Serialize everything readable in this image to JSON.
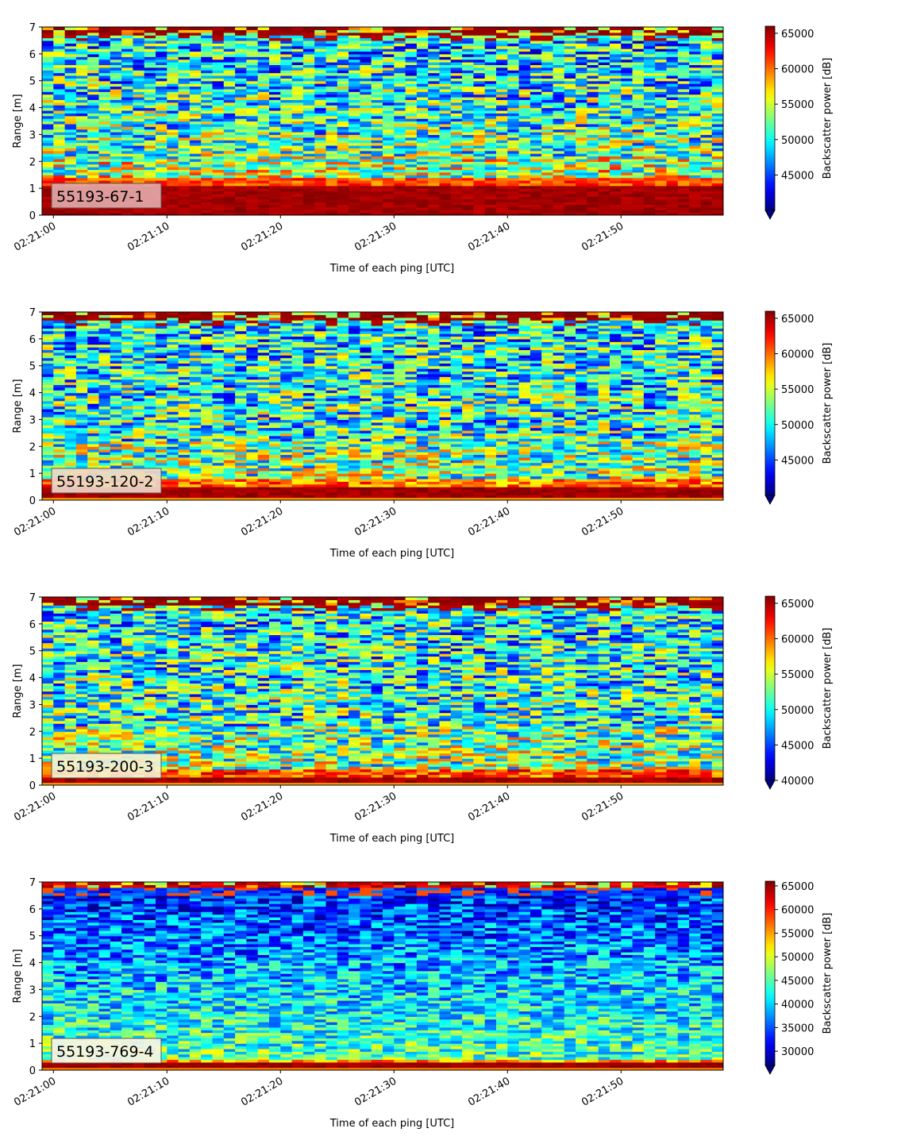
{
  "colors": {
    "colormap": "jet",
    "frame": "#000000",
    "label_box_bg": "#ffffff"
  },
  "chart_data": [
    {
      "type": "heatmap",
      "label": "55193-67-1",
      "label_box_color": "#e3a8a8",
      "xlabel": "Time of each ping [UTC]",
      "ylabel": "Range [m]",
      "xlim": [
        "02:20:59",
        "02:21:59"
      ],
      "ylim": [
        0,
        7
      ],
      "xticks": [
        "02:21:00",
        "02:21:10",
        "02:21:20",
        "02:21:30",
        "02:21:40",
        "02:21:50"
      ],
      "yticks": [
        0,
        1,
        2,
        3,
        4,
        5,
        6,
        7
      ],
      "colorbar": {
        "label": "Backscatter power [dB]",
        "vmin": 40000,
        "vmax": 66000,
        "extend": "min",
        "ticks": [
          45000,
          50000,
          55000,
          60000,
          65000
        ]
      },
      "profile": "bright_floor"
    },
    {
      "type": "heatmap",
      "label": "55193-120-2",
      "label_box_color": "#eed8c8",
      "xlabel": "Time of each ping [UTC]",
      "ylabel": "Range [m]",
      "xlim": [
        "02:20:59",
        "02:21:59"
      ],
      "ylim": [
        0,
        7
      ],
      "xticks": [
        "02:21:00",
        "02:21:10",
        "02:21:20",
        "02:21:30",
        "02:21:40",
        "02:21:50"
      ],
      "yticks": [
        0,
        1,
        2,
        3,
        4,
        5,
        6,
        7
      ],
      "colorbar": {
        "label": "Backscatter power [dB]",
        "vmin": 40000,
        "vmax": 66000,
        "extend": "min",
        "ticks": [
          45000,
          50000,
          55000,
          60000,
          65000
        ]
      },
      "profile": "mid_floor"
    },
    {
      "type": "heatmap",
      "label": "55193-200-3",
      "label_box_color": "#f4f0d0",
      "xlabel": "Time of each ping [UTC]",
      "ylabel": "Range [m]",
      "xlim": [
        "02:20:59",
        "02:21:59"
      ],
      "ylim": [
        0,
        7
      ],
      "xticks": [
        "02:21:00",
        "02:21:10",
        "02:21:20",
        "02:21:30",
        "02:21:40",
        "02:21:50"
      ],
      "yticks": [
        0,
        1,
        2,
        3,
        4,
        5,
        6,
        7
      ],
      "colorbar": {
        "label": "Backscatter power [dB]",
        "vmin": 40000,
        "vmax": 66000,
        "extend": "min",
        "ticks": [
          40000,
          45000,
          50000,
          55000,
          60000,
          65000
        ]
      },
      "profile": "thin_floor"
    },
    {
      "type": "heatmap",
      "label": "55193-769-4",
      "label_box_color": "#f8f4e4",
      "xlabel": "Time of each ping [UTC]",
      "ylabel": "Range [m]",
      "xlim": [
        "02:20:59",
        "02:21:59"
      ],
      "ylim": [
        0,
        7
      ],
      "xticks": [
        "02:21:00",
        "02:21:10",
        "02:21:20",
        "02:21:30",
        "02:21:40",
        "02:21:50"
      ],
      "yticks": [
        0,
        1,
        2,
        3,
        4,
        5,
        6,
        7
      ],
      "colorbar": {
        "label": "Backscatter power [dB]",
        "vmin": 27000,
        "vmax": 66000,
        "extend": "min",
        "ticks": [
          30000,
          35000,
          40000,
          45000,
          50000,
          55000,
          60000,
          65000
        ]
      },
      "profile": "dark_column"
    }
  ]
}
